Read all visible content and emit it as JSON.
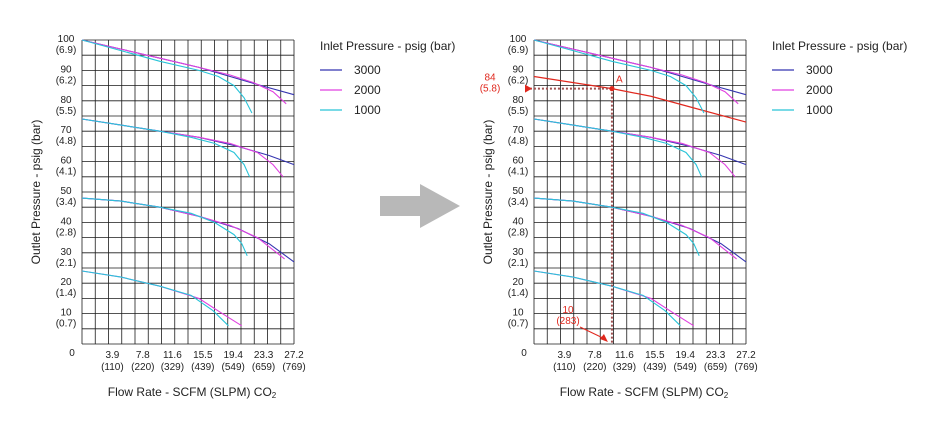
{
  "colors": {
    "3000": "#3535b0",
    "2000": "#e040e0",
    "1000": "#29c4d8",
    "annotation": "#e0281e",
    "arrow": "#b8b8b8"
  },
  "chart_data": [
    {
      "type": "line",
      "title": "",
      "xlabel": "Flow Rate - SCFM (SLPM) CO",
      "xlabel_sub": "2",
      "ylabel": "Outlet Pressure - psig (bar)",
      "xlim": [
        0,
        27.2
      ],
      "ylim": [
        0,
        100
      ],
      "grid": true,
      "x_ticks": [
        {
          "v": 0,
          "a": "0",
          "b": ""
        },
        {
          "v": 3.9,
          "a": "3.9",
          "b": "(110)"
        },
        {
          "v": 7.8,
          "a": "7.8",
          "b": "(220)"
        },
        {
          "v": 11.6,
          "a": "11.6",
          "b": "(329)"
        },
        {
          "v": 15.5,
          "a": "15.5",
          "b": "(439)"
        },
        {
          "v": 19.4,
          "a": "19.4",
          "b": "(549)"
        },
        {
          "v": 23.3,
          "a": "23.3",
          "b": "(659)"
        },
        {
          "v": 27.2,
          "a": "27.2",
          "b": "(769)"
        }
      ],
      "y_ticks": [
        {
          "v": 100,
          "a": "100",
          "b": "(6.9)"
        },
        {
          "v": 90,
          "a": "90",
          "b": "(6.2)"
        },
        {
          "v": 80,
          "a": "80",
          "b": "(5.5)"
        },
        {
          "v": 70,
          "a": "70",
          "b": "(4.8)"
        },
        {
          "v": 60,
          "a": "60",
          "b": "(4.1)"
        },
        {
          "v": 50,
          "a": "50",
          "b": "(3.4)"
        },
        {
          "v": 40,
          "a": "40",
          "b": "(2.8)"
        },
        {
          "v": 30,
          "a": "30",
          "b": "(2.1)"
        },
        {
          "v": 20,
          "a": "20",
          "b": "(1.4)"
        },
        {
          "v": 10,
          "a": "10",
          "b": "(0.7)"
        }
      ],
      "legend": {
        "title": "Inlet Pressure - psig (bar)",
        "placement": "right",
        "entries": [
          "3000",
          "2000",
          "1000"
        ]
      },
      "series": [
        {
          "name": "3000",
          "points": [
            [
              0,
              100
            ],
            [
              5,
              97
            ],
            [
              10,
              94
            ],
            [
              15,
              91
            ],
            [
              19,
              88
            ],
            [
              23,
              85
            ],
            [
              27.2,
              82
            ]
          ]
        },
        {
          "name": "2000",
          "points": [
            [
              0,
              100
            ],
            [
              5,
              97
            ],
            [
              10,
              94
            ],
            [
              15,
              91
            ],
            [
              19,
              88.5
            ],
            [
              22,
              86
            ],
            [
              24.5,
              83
            ],
            [
              26.2,
              79
            ]
          ]
        },
        {
          "name": "1000",
          "points": [
            [
              0,
              100
            ],
            [
              5,
              96.5
            ],
            [
              10,
              93
            ],
            [
              15,
              90
            ],
            [
              17.5,
              88
            ],
            [
              19.5,
              85
            ],
            [
              20.8,
              81
            ],
            [
              21.8,
              76
            ]
          ]
        },
        {
          "name": "3000",
          "points": [
            [
              0,
              74
            ],
            [
              5,
              72
            ],
            [
              10,
              70
            ],
            [
              15,
              68
            ],
            [
              20,
              65
            ],
            [
              24,
              62
            ],
            [
              27.2,
              59
            ]
          ]
        },
        {
          "name": "2000",
          "points": [
            [
              0,
              74
            ],
            [
              5,
              72
            ],
            [
              10,
              70
            ],
            [
              15,
              68
            ],
            [
              19,
              66
            ],
            [
              22.5,
              63
            ],
            [
              24.5,
              59
            ],
            [
              25.8,
              55
            ]
          ]
        },
        {
          "name": "1000",
          "points": [
            [
              0,
              74
            ],
            [
              5,
              72
            ],
            [
              10,
              70
            ],
            [
              14,
              68
            ],
            [
              17,
              66
            ],
            [
              19.5,
              63
            ],
            [
              20.8,
              59
            ],
            [
              21.5,
              55
            ]
          ]
        },
        {
          "name": "3000",
          "points": [
            [
              0,
              48
            ],
            [
              5,
              47
            ],
            [
              10,
              45
            ],
            [
              15,
              42
            ],
            [
              20,
              38
            ],
            [
              24,
              33
            ],
            [
              27.2,
              27
            ]
          ]
        },
        {
          "name": "2000",
          "points": [
            [
              0,
              48
            ],
            [
              5,
              47
            ],
            [
              10,
              45
            ],
            [
              15,
              42
            ],
            [
              19,
              39
            ],
            [
              22.5,
              35
            ],
            [
              24.5,
              31
            ],
            [
              26,
              28
            ]
          ]
        },
        {
          "name": "1000",
          "points": [
            [
              0,
              48
            ],
            [
              5,
              47
            ],
            [
              10,
              45
            ],
            [
              14,
              43
            ],
            [
              17,
              40
            ],
            [
              19.5,
              36
            ],
            [
              20.5,
              33
            ],
            [
              21.2,
              29
            ]
          ]
        },
        {
          "name": "2000",
          "points": [
            [
              0,
              24
            ],
            [
              5,
              22
            ],
            [
              10,
              19
            ],
            [
              15,
              15
            ],
            [
              18,
              10
            ],
            [
              20.5,
              6
            ]
          ]
        },
        {
          "name": "1000",
          "points": [
            [
              0,
              24
            ],
            [
              5,
              22
            ],
            [
              10,
              19
            ],
            [
              14,
              16
            ],
            [
              16.8,
              11
            ],
            [
              18.8,
              6
            ]
          ]
        }
      ]
    },
    {
      "type": "line",
      "title": "",
      "xlabel": "Flow Rate - SCFM (SLPM) CO",
      "xlabel_sub": "2",
      "ylabel": "Outlet Pressure - psig (bar)",
      "xlim": [
        0,
        27.2
      ],
      "ylim": [
        0,
        100
      ],
      "grid": true,
      "x_ticks": [
        {
          "v": 0,
          "a": "0",
          "b": ""
        },
        {
          "v": 3.9,
          "a": "3.9",
          "b": "(110)"
        },
        {
          "v": 7.8,
          "a": "7.8",
          "b": "(220)"
        },
        {
          "v": 11.6,
          "a": "11.6",
          "b": "(329)"
        },
        {
          "v": 15.5,
          "a": "15.5",
          "b": "(439)"
        },
        {
          "v": 19.4,
          "a": "19.4",
          "b": "(549)"
        },
        {
          "v": 23.3,
          "a": "23.3",
          "b": "(659)"
        },
        {
          "v": 27.2,
          "a": "27.2",
          "b": "(769)"
        }
      ],
      "y_ticks": [
        {
          "v": 100,
          "a": "100",
          "b": "(6.9)"
        },
        {
          "v": 90,
          "a": "90",
          "b": "(6.2)"
        },
        {
          "v": 80,
          "a": "80",
          "b": "(5.5)"
        },
        {
          "v": 70,
          "a": "70",
          "b": "(4.8)"
        },
        {
          "v": 60,
          "a": "60",
          "b": "(4.1)"
        },
        {
          "v": 50,
          "a": "50",
          "b": "(3.4)"
        },
        {
          "v": 40,
          "a": "40",
          "b": "(2.8)"
        },
        {
          "v": 30,
          "a": "30",
          "b": "(2.1)"
        },
        {
          "v": 20,
          "a": "20",
          "b": "(1.4)"
        },
        {
          "v": 10,
          "a": "10",
          "b": "(0.7)"
        }
      ],
      "legend": {
        "title": "Inlet Pressure - psig (bar)",
        "placement": "right",
        "entries": [
          "3000",
          "2000",
          "1000"
        ]
      },
      "series": [
        {
          "name": "3000",
          "points": [
            [
              0,
              100
            ],
            [
              5,
              97
            ],
            [
              10,
              94
            ],
            [
              15,
              91
            ],
            [
              19,
              88
            ],
            [
              23,
              85
            ],
            [
              27.2,
              82
            ]
          ]
        },
        {
          "name": "2000",
          "points": [
            [
              0,
              100
            ],
            [
              5,
              97
            ],
            [
              10,
              94
            ],
            [
              15,
              91
            ],
            [
              19,
              88.5
            ],
            [
              22,
              86
            ],
            [
              24.5,
              83
            ],
            [
              26.2,
              79
            ]
          ]
        },
        {
          "name": "1000",
          "points": [
            [
              0,
              100
            ],
            [
              5,
              96.5
            ],
            [
              10,
              93
            ],
            [
              15,
              90
            ],
            [
              17.5,
              88
            ],
            [
              19.5,
              85
            ],
            [
              20.8,
              81
            ],
            [
              21.8,
              76
            ]
          ]
        },
        {
          "name": "3000",
          "points": [
            [
              0,
              74
            ],
            [
              5,
              72
            ],
            [
              10,
              70
            ],
            [
              15,
              68
            ],
            [
              20,
              65
            ],
            [
              24,
              62
            ],
            [
              27.2,
              59
            ]
          ]
        },
        {
          "name": "2000",
          "points": [
            [
              0,
              74
            ],
            [
              5,
              72
            ],
            [
              10,
              70
            ],
            [
              15,
              68
            ],
            [
              19,
              66
            ],
            [
              22.5,
              63
            ],
            [
              24.5,
              59
            ],
            [
              25.8,
              55
            ]
          ]
        },
        {
          "name": "1000",
          "points": [
            [
              0,
              74
            ],
            [
              5,
              72
            ],
            [
              10,
              70
            ],
            [
              14,
              68
            ],
            [
              17,
              66
            ],
            [
              19.5,
              63
            ],
            [
              20.8,
              59
            ],
            [
              21.5,
              55
            ]
          ]
        },
        {
          "name": "3000",
          "points": [
            [
              0,
              48
            ],
            [
              5,
              47
            ],
            [
              10,
              45
            ],
            [
              15,
              42
            ],
            [
              20,
              38
            ],
            [
              24,
              33
            ],
            [
              27.2,
              27
            ]
          ]
        },
        {
          "name": "2000",
          "points": [
            [
              0,
              48
            ],
            [
              5,
              47
            ],
            [
              10,
              45
            ],
            [
              15,
              42
            ],
            [
              19,
              39
            ],
            [
              22.5,
              35
            ],
            [
              24.5,
              31
            ],
            [
              26,
              28
            ]
          ]
        },
        {
          "name": "1000",
          "points": [
            [
              0,
              48
            ],
            [
              5,
              47
            ],
            [
              10,
              45
            ],
            [
              14,
              43
            ],
            [
              17,
              40
            ],
            [
              19.5,
              36
            ],
            [
              20.5,
              33
            ],
            [
              21.2,
              29
            ]
          ]
        },
        {
          "name": "2000",
          "points": [
            [
              0,
              24
            ],
            [
              5,
              22
            ],
            [
              10,
              19
            ],
            [
              15,
              15
            ],
            [
              18,
              10
            ],
            [
              20.5,
              6
            ]
          ]
        },
        {
          "name": "1000",
          "points": [
            [
              0,
              24
            ],
            [
              5,
              22
            ],
            [
              10,
              19
            ],
            [
              14,
              16
            ],
            [
              16.8,
              11
            ],
            [
              18.8,
              6
            ]
          ]
        }
      ],
      "operating_line": {
        "points": [
          [
            0,
            88
          ],
          [
            10,
            84
          ],
          [
            15,
            81.5
          ],
          [
            20,
            78
          ],
          [
            27.2,
            73
          ]
        ]
      },
      "annotations": {
        "point": {
          "label": "A",
          "x": 10,
          "y": 84
        },
        "y_callout": {
          "a": "84",
          "b": "(5.8)",
          "value": 84
        },
        "x_callout": {
          "a": "10",
          "b": "(283)",
          "value": 10
        }
      }
    }
  ]
}
